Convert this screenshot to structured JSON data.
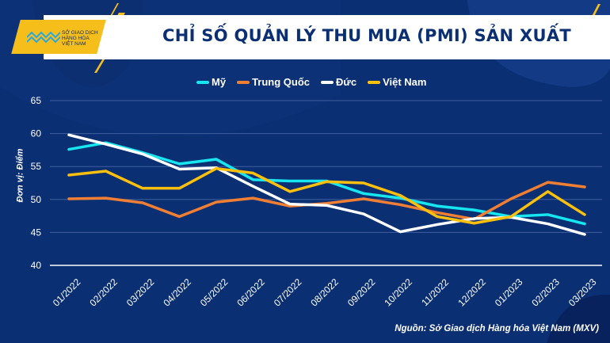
{
  "header": {
    "title": "CHỈ SỐ QUẢN LÝ THU MUA (PMI) SẢN XUẤT",
    "logo_text": [
      "SỞ GIAO DỊCH",
      "HÀNG HÓA",
      "VIỆT NAM"
    ]
  },
  "source": "Nguồn: Sở Giao dịch Hàng hóa Việt Nam (MXV)",
  "chart_data": {
    "type": "line",
    "title": "CHỈ SỐ QUẢN LÝ THU MUA (PMI) SẢN XUẤT",
    "xlabel": "",
    "ylabel": "Đơn vị: Điểm",
    "ylim": [
      40,
      65
    ],
    "yticks": [
      40,
      45,
      50,
      55,
      60,
      65
    ],
    "grid": true,
    "legend_position": "top",
    "categories": [
      "01/2022",
      "02/2022",
      "03/2022",
      "04/2022",
      "05/2022",
      "06/2022",
      "07/2022",
      "08/2022",
      "09/2022",
      "10/2022",
      "11/2022",
      "12/2022",
      "01/2023",
      "02/2023",
      "03/2023"
    ],
    "series": [
      {
        "name": "Mỹ",
        "color": "#16e6f0",
        "values": [
          57.6,
          58.6,
          57.1,
          55.4,
          56.1,
          53.0,
          52.8,
          52.8,
          50.9,
          50.2,
          49.0,
          48.4,
          47.4,
          47.7,
          46.3
        ]
      },
      {
        "name": "Trung Quốc",
        "color": "#f07f34",
        "values": [
          50.1,
          50.2,
          49.5,
          47.4,
          49.6,
          50.2,
          49.0,
          49.4,
          50.1,
          49.2,
          48.0,
          47.0,
          50.1,
          52.6,
          51.9
        ]
      },
      {
        "name": "Đức",
        "color": "#ffffff",
        "values": [
          59.8,
          58.4,
          56.9,
          54.6,
          54.8,
          52.0,
          49.3,
          49.1,
          47.8,
          45.1,
          46.2,
          47.1,
          47.3,
          46.3,
          44.7
        ]
      },
      {
        "name": "Việt Nam",
        "color": "#fbbf0e",
        "values": [
          53.7,
          54.3,
          51.7,
          51.7,
          54.7,
          54.0,
          51.2,
          52.7,
          52.5,
          50.6,
          47.4,
          46.4,
          47.4,
          51.2,
          47.7
        ]
      }
    ]
  }
}
